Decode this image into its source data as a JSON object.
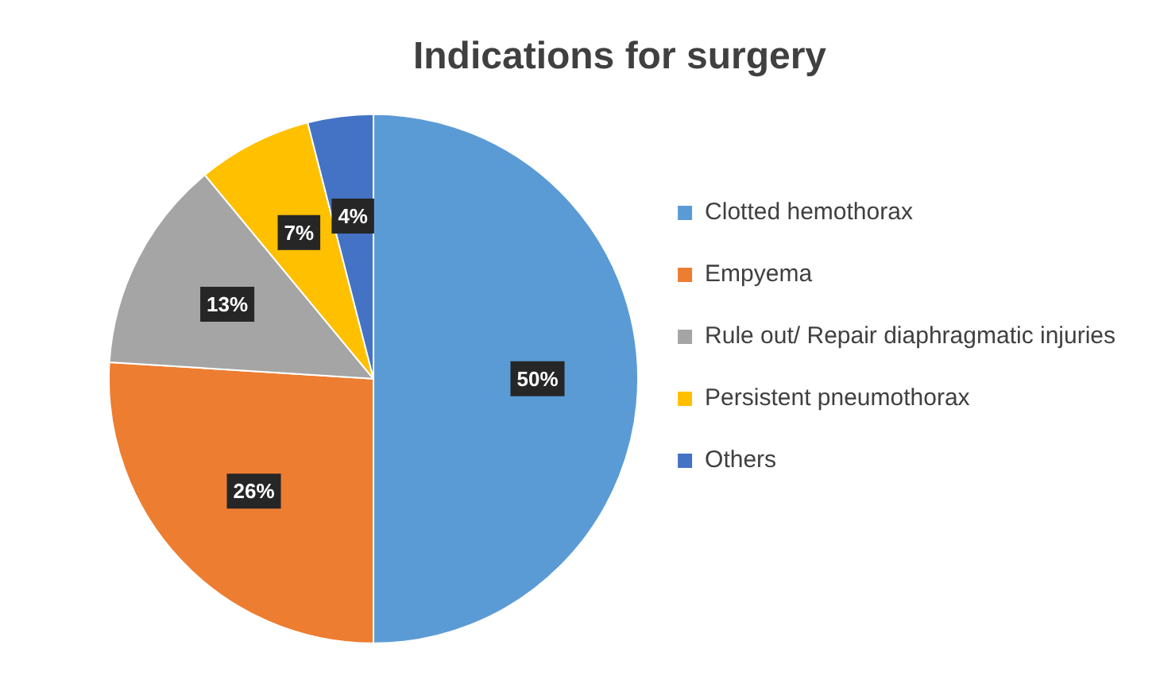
{
  "chart_data": {
    "type": "pie",
    "title": "Indications for surgery",
    "categories": [
      "Clotted hemothorax",
      "Empyema",
      "Rule out/ Repair diaphragmatic injuries",
      "Persistent pneumothorax",
      "Others"
    ],
    "values": [
      50,
      26,
      13,
      7,
      4
    ],
    "colors": [
      "#5b9bd5",
      "#ed7d31",
      "#a5a5a5",
      "#ffc000",
      "#4472c4"
    ],
    "value_labels": [
      "50%",
      "26%",
      "13%",
      "7%",
      "4%"
    ],
    "legend": "right"
  }
}
